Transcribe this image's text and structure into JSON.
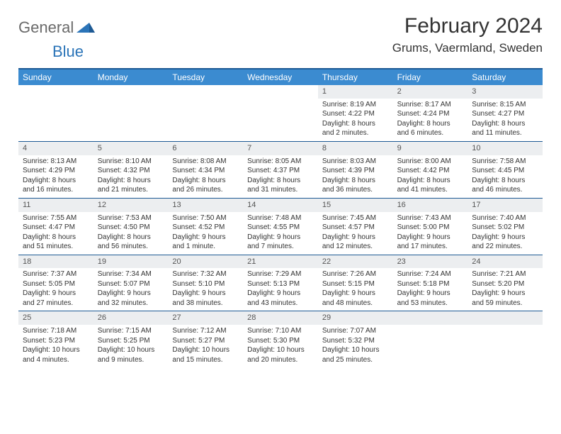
{
  "brand": {
    "part1": "General",
    "part2": "Blue"
  },
  "title": "February 2024",
  "location": "Grums, Vaermland, Sweden",
  "colors": {
    "header_bg": "#3b8bd0",
    "header_border": "#1e5a94",
    "daynum_bg": "#eceef0",
    "text": "#333333",
    "brand_gray": "#6a6a6a",
    "brand_blue": "#2b74b8"
  },
  "dayNames": [
    "Sunday",
    "Monday",
    "Tuesday",
    "Wednesday",
    "Thursday",
    "Friday",
    "Saturday"
  ],
  "weeks": [
    [
      {
        "n": "",
        "s": "",
        "u": "",
        "d": ""
      },
      {
        "n": "",
        "s": "",
        "u": "",
        "d": ""
      },
      {
        "n": "",
        "s": "",
        "u": "",
        "d": ""
      },
      {
        "n": "",
        "s": "",
        "u": "",
        "d": ""
      },
      {
        "n": "1",
        "s": "Sunrise: 8:19 AM",
        "u": "Sunset: 4:22 PM",
        "d": "Daylight: 8 hours and 2 minutes."
      },
      {
        "n": "2",
        "s": "Sunrise: 8:17 AM",
        "u": "Sunset: 4:24 PM",
        "d": "Daylight: 8 hours and 6 minutes."
      },
      {
        "n": "3",
        "s": "Sunrise: 8:15 AM",
        "u": "Sunset: 4:27 PM",
        "d": "Daylight: 8 hours and 11 minutes."
      }
    ],
    [
      {
        "n": "4",
        "s": "Sunrise: 8:13 AM",
        "u": "Sunset: 4:29 PM",
        "d": "Daylight: 8 hours and 16 minutes."
      },
      {
        "n": "5",
        "s": "Sunrise: 8:10 AM",
        "u": "Sunset: 4:32 PM",
        "d": "Daylight: 8 hours and 21 minutes."
      },
      {
        "n": "6",
        "s": "Sunrise: 8:08 AM",
        "u": "Sunset: 4:34 PM",
        "d": "Daylight: 8 hours and 26 minutes."
      },
      {
        "n": "7",
        "s": "Sunrise: 8:05 AM",
        "u": "Sunset: 4:37 PM",
        "d": "Daylight: 8 hours and 31 minutes."
      },
      {
        "n": "8",
        "s": "Sunrise: 8:03 AM",
        "u": "Sunset: 4:39 PM",
        "d": "Daylight: 8 hours and 36 minutes."
      },
      {
        "n": "9",
        "s": "Sunrise: 8:00 AM",
        "u": "Sunset: 4:42 PM",
        "d": "Daylight: 8 hours and 41 minutes."
      },
      {
        "n": "10",
        "s": "Sunrise: 7:58 AM",
        "u": "Sunset: 4:45 PM",
        "d": "Daylight: 8 hours and 46 minutes."
      }
    ],
    [
      {
        "n": "11",
        "s": "Sunrise: 7:55 AM",
        "u": "Sunset: 4:47 PM",
        "d": "Daylight: 8 hours and 51 minutes."
      },
      {
        "n": "12",
        "s": "Sunrise: 7:53 AM",
        "u": "Sunset: 4:50 PM",
        "d": "Daylight: 8 hours and 56 minutes."
      },
      {
        "n": "13",
        "s": "Sunrise: 7:50 AM",
        "u": "Sunset: 4:52 PM",
        "d": "Daylight: 9 hours and 1 minute."
      },
      {
        "n": "14",
        "s": "Sunrise: 7:48 AM",
        "u": "Sunset: 4:55 PM",
        "d": "Daylight: 9 hours and 7 minutes."
      },
      {
        "n": "15",
        "s": "Sunrise: 7:45 AM",
        "u": "Sunset: 4:57 PM",
        "d": "Daylight: 9 hours and 12 minutes."
      },
      {
        "n": "16",
        "s": "Sunrise: 7:43 AM",
        "u": "Sunset: 5:00 PM",
        "d": "Daylight: 9 hours and 17 minutes."
      },
      {
        "n": "17",
        "s": "Sunrise: 7:40 AM",
        "u": "Sunset: 5:02 PM",
        "d": "Daylight: 9 hours and 22 minutes."
      }
    ],
    [
      {
        "n": "18",
        "s": "Sunrise: 7:37 AM",
        "u": "Sunset: 5:05 PM",
        "d": "Daylight: 9 hours and 27 minutes."
      },
      {
        "n": "19",
        "s": "Sunrise: 7:34 AM",
        "u": "Sunset: 5:07 PM",
        "d": "Daylight: 9 hours and 32 minutes."
      },
      {
        "n": "20",
        "s": "Sunrise: 7:32 AM",
        "u": "Sunset: 5:10 PM",
        "d": "Daylight: 9 hours and 38 minutes."
      },
      {
        "n": "21",
        "s": "Sunrise: 7:29 AM",
        "u": "Sunset: 5:13 PM",
        "d": "Daylight: 9 hours and 43 minutes."
      },
      {
        "n": "22",
        "s": "Sunrise: 7:26 AM",
        "u": "Sunset: 5:15 PM",
        "d": "Daylight: 9 hours and 48 minutes."
      },
      {
        "n": "23",
        "s": "Sunrise: 7:24 AM",
        "u": "Sunset: 5:18 PM",
        "d": "Daylight: 9 hours and 53 minutes."
      },
      {
        "n": "24",
        "s": "Sunrise: 7:21 AM",
        "u": "Sunset: 5:20 PM",
        "d": "Daylight: 9 hours and 59 minutes."
      }
    ],
    [
      {
        "n": "25",
        "s": "Sunrise: 7:18 AM",
        "u": "Sunset: 5:23 PM",
        "d": "Daylight: 10 hours and 4 minutes."
      },
      {
        "n": "26",
        "s": "Sunrise: 7:15 AM",
        "u": "Sunset: 5:25 PM",
        "d": "Daylight: 10 hours and 9 minutes."
      },
      {
        "n": "27",
        "s": "Sunrise: 7:12 AM",
        "u": "Sunset: 5:27 PM",
        "d": "Daylight: 10 hours and 15 minutes."
      },
      {
        "n": "28",
        "s": "Sunrise: 7:10 AM",
        "u": "Sunset: 5:30 PM",
        "d": "Daylight: 10 hours and 20 minutes."
      },
      {
        "n": "29",
        "s": "Sunrise: 7:07 AM",
        "u": "Sunset: 5:32 PM",
        "d": "Daylight: 10 hours and 25 minutes."
      },
      {
        "n": "",
        "s": "",
        "u": "",
        "d": ""
      },
      {
        "n": "",
        "s": "",
        "u": "",
        "d": ""
      }
    ]
  ]
}
